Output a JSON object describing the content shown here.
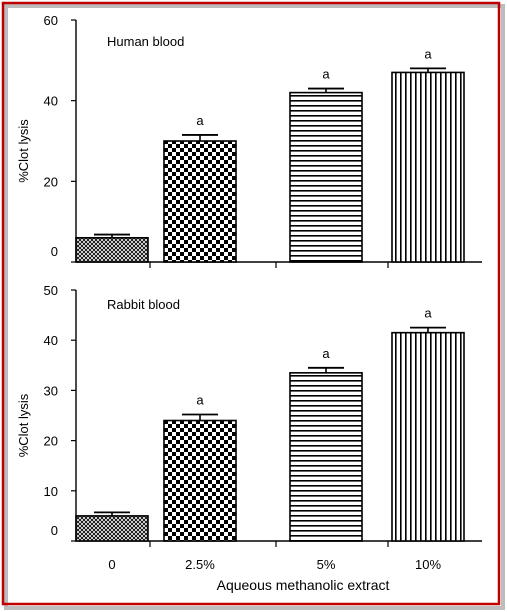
{
  "colors": {
    "border": "#c00000",
    "shadow": "#b8b8b8",
    "axis": "#000000",
    "bar_fill": "#ffffff",
    "bar_pattern": "#000000"
  },
  "xlabel": "Aqueous methanolic extract",
  "chart_data": [
    {
      "type": "bar",
      "title": "Human blood",
      "categories": [
        "0",
        "2.5%",
        "5%",
        "10%"
      ],
      "values": [
        6,
        30,
        42,
        47
      ],
      "errors": [
        0.8,
        1.5,
        1.0,
        1.0
      ],
      "annotations": [
        "",
        "a",
        "a",
        "a"
      ],
      "patterns": [
        "crosshatch",
        "checker",
        "horizontal",
        "vertical"
      ],
      "ylabel": "%Clot lysis",
      "ylim": [
        0,
        60
      ],
      "yticks": [
        0,
        20,
        40,
        60
      ],
      "grid": false
    },
    {
      "type": "bar",
      "title": "Rabbit blood",
      "categories": [
        "0",
        "2.5%",
        "5%",
        "10%"
      ],
      "values": [
        5,
        24,
        33.5,
        41.5
      ],
      "errors": [
        0.7,
        1.2,
        1.0,
        1.0
      ],
      "annotations": [
        "",
        "a",
        "a",
        "a"
      ],
      "patterns": [
        "crosshatch",
        "checker",
        "horizontal",
        "vertical"
      ],
      "ylabel": "%Clot lysis",
      "ylim": [
        0,
        50
      ],
      "yticks": [
        0,
        10,
        20,
        30,
        40,
        50
      ],
      "grid": false
    }
  ]
}
